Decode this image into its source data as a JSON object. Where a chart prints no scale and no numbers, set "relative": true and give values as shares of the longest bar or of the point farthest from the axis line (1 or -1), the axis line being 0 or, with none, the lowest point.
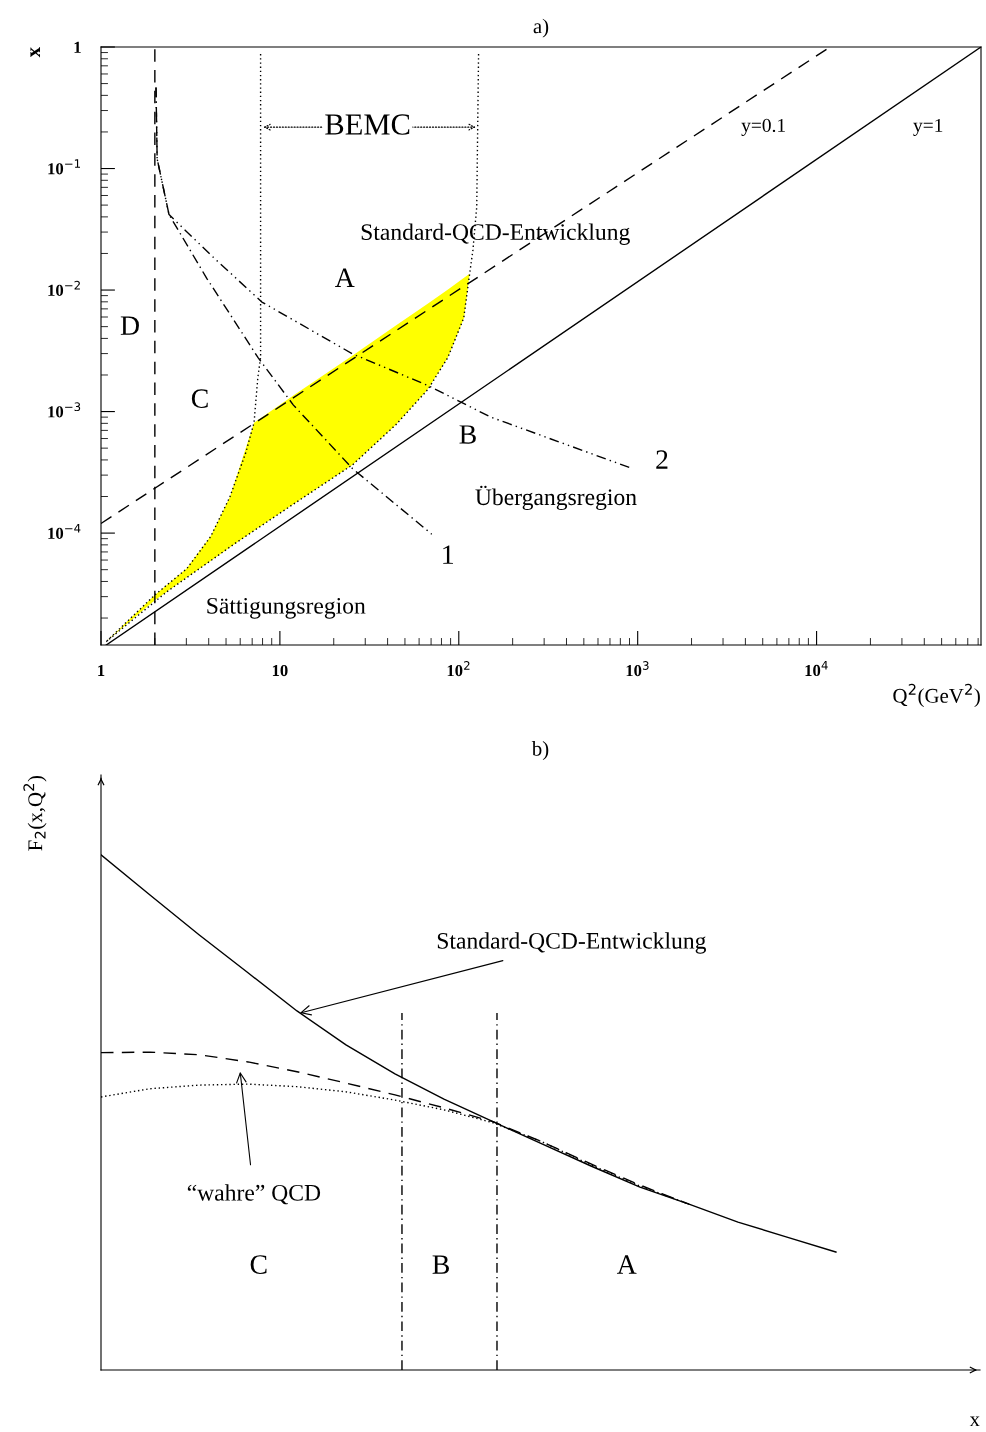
{
  "chart_data": [
    {
      "type": "line",
      "title": "a)",
      "xlabel": "Q$^{2}$(GeV$^{2}$)",
      "ylabel": "x",
      "log": "xy",
      "xlim": [
        1,
        83000
      ],
      "ylim": [
        1.2e-05,
        1
      ],
      "xticks": [
        1,
        10,
        {
          "value": 100,
          "label": "10$^{2}$"
        },
        {
          "value": 1000,
          "label": "10$^{3}$"
        },
        {
          "value": 10000,
          "label": "10$^{4}$"
        }
      ],
      "yticks": [
        {
          "value": 0.0001,
          "label": "10$^{−4}$"
        },
        {
          "value": 0.001,
          "label": "10$^{−3}$"
        },
        {
          "value": 0.01,
          "label": "10$^{−2}$"
        },
        {
          "value": 0.1,
          "label": "10$^{−1}$"
        },
        1
      ],
      "grid": false,
      "legend": false,
      "series": [
        {
          "type": "area",
          "color": "#ffff00",
          "x": [
            1.07,
            2.0,
            3.0,
            4.1,
            5.25,
            7.17,
            12,
            25.5,
            44.5,
            67,
            87,
            107,
            115,
            107,
            87,
            67,
            44.5,
            25.5,
            12,
            7.17,
            5.25,
            4.1,
            3.0,
            2.0
          ],
          "values": [
            1.28e-05,
            3.1e-05,
            5.1e-05,
            9.4e-05,
            0.000198,
            0.00081,
            0.00137,
            0.0029,
            0.0051,
            0.0077,
            0.0101,
            0.0126,
            0.0136,
            0.0059,
            0.00279,
            0.00152,
            0.00078,
            0.000365,
            0.000174,
            0.000105,
            7.6e-05,
            5.9e-05,
            4.3e-05,
            2.8e-05
          ]
        },
        {
          "type": "line",
          "color": "#000000",
          "line_style": "solid",
          "x": [
            1.07,
            83000
          ],
          "values": [
            1.2e-05,
            1
          ]
        },
        {
          "type": "line",
          "color": "#000000",
          "line_style": "dashed",
          "x": [
            1,
            11900
          ],
          "values": [
            0.00012,
            1
          ]
        },
        {
          "type": "line",
          "color": "#000000",
          "line_style": "dotted",
          "x": [
            7.8,
            7.8,
            7.53,
            7.17,
            6.45,
            5.25,
            4.11,
            3.02,
            2.0,
            1.07
          ],
          "values": [
            0.875,
            0.00279,
            0.00191,
            0.00081,
            0.00046,
            0.000198,
            9.4e-05,
            5.1e-05,
            3.1e-05,
            1.28e-05
          ]
        },
        {
          "type": "line",
          "color": "#000000",
          "line_style": "dotted",
          "x": [
            129,
            126,
            120,
            115,
            106.6,
            86.9,
            67.2,
            44.5,
            25.5,
            11.96,
            5.53,
            2.34,
            1.07
          ],
          "values": [
            0.875,
            0.0485,
            0.0214,
            0.0136,
            0.0059,
            0.00279,
            0.00152,
            0.00078,
            0.000365,
            0.000174,
            8.1e-05,
            3.3e-05,
            1.28e-05
          ]
        },
        {
          "type": "line",
          "color": "#000000",
          "line_style": "dashdot",
          "x": [
            2.03,
            2.06,
            2.4,
            3.9,
            7.55,
            11.9,
            25.5,
            70.6
          ],
          "values": [
            0.464,
            0.12,
            0.0418,
            0.0125,
            0.00278,
            0.00113,
            0.000339,
            9.8e-05
          ]
        },
        {
          "type": "line",
          "color": "#000000",
          "line_style": "dashdotdot",
          "x": [
            2.03,
            2.06,
            2.4,
            4.31,
            7.93,
            25.5,
            67.1,
            151,
            938
          ],
          "values": [
            0.464,
            0.12,
            0.0418,
            0.0182,
            0.00797,
            0.00298,
            0.00164,
            0.0009,
            0.000339
          ]
        }
      ],
      "ref_lines": [
        {
          "axis": "x",
          "value": 2,
          "color": "#000000",
          "line_style": "dashed"
        }
      ],
      "annotations": [
        "BEMC",
        "y=0.1",
        "y=1",
        "Standard-QCD-Entwicklung",
        "A",
        "D",
        "C",
        "B",
        "2",
        "Übergangsregion",
        "1",
        "Sättigungsregion"
      ]
    },
    {
      "type": "line",
      "title": "b)",
      "xlabel": "x",
      "ylabel": "F$_{2}$(x,Q$^{2}$)",
      "relative": true,
      "grid": false,
      "legend": false,
      "categories": [
        null,
        null,
        null,
        null,
        null,
        null,
        null,
        null,
        null,
        null,
        null,
        null,
        null,
        null,
        null,
        null
      ],
      "series": [
        {
          "color": "#000000",
          "line_style": "solid",
          "values": [
            1.0,
            0.922,
            0.845,
            0.771,
            0.697,
            0.631,
            0.575,
            0.526,
            0.482,
            0.439,
            0.396,
            0.355,
            0.322,
            0.287,
            0.258,
            0.229
          ]
        },
        {
          "color": "#000000",
          "line_style": "dashed",
          "values": [
            0.616,
            0.617,
            0.612,
            0.598,
            0.579,
            0.557,
            0.534,
            0.509,
            0.482,
            0.443,
            0.4,
            0.359,
            0.322,
            null,
            null,
            null
          ]
        },
        {
          "color": "#000000",
          "line_style": "dotted",
          "values": [
            0.53,
            0.546,
            0.553,
            0.555,
            0.55,
            0.54,
            0.524,
            0.505,
            0.48,
            0.443,
            0.398,
            0.357,
            0.322,
            null,
            null,
            null
          ]
        }
      ],
      "annotations": [
        "Standard-QCD-Entwicklung",
        "“wahre” QCD",
        "C",
        "B",
        "A"
      ]
    }
  ]
}
